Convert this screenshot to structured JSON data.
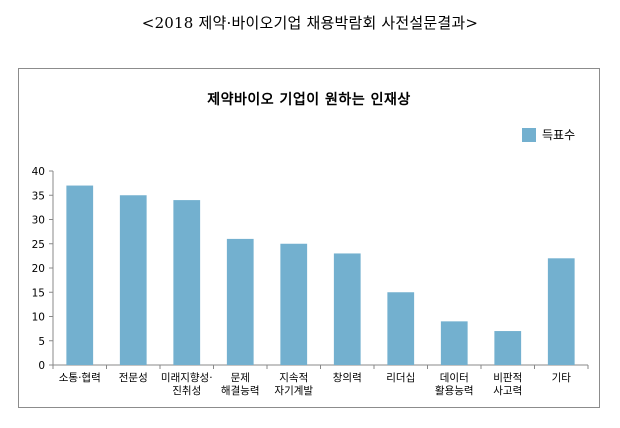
{
  "page": {
    "title": "<2018 제약·바이오기업 채용박람회 사전설문결과>"
  },
  "chart_data": {
    "type": "bar",
    "title": "제약바이오 기업이 원하는 인재상",
    "categories": [
      [
        "소통·협력"
      ],
      [
        "전문성"
      ],
      [
        "미래지향성·",
        "진취성"
      ],
      [
        "문제",
        "해결능력"
      ],
      [
        "지속적",
        "자기계발"
      ],
      [
        "창의력"
      ],
      [
        "리더십"
      ],
      [
        "데이터",
        "활용능력"
      ],
      [
        "비판적",
        "사고력"
      ],
      [
        "기타"
      ]
    ],
    "series": [
      {
        "name": "득표수",
        "values": [
          37,
          35,
          34,
          26,
          25,
          23,
          15,
          9,
          7,
          22
        ]
      }
    ],
    "ylim": [
      0,
      40
    ],
    "yticks": [
      0,
      5,
      10,
      15,
      20,
      25,
      30,
      35,
      40
    ],
    "grid": false,
    "legend": "top-right",
    "bar_color": "#73b0cf",
    "axis_color": "#888888"
  }
}
